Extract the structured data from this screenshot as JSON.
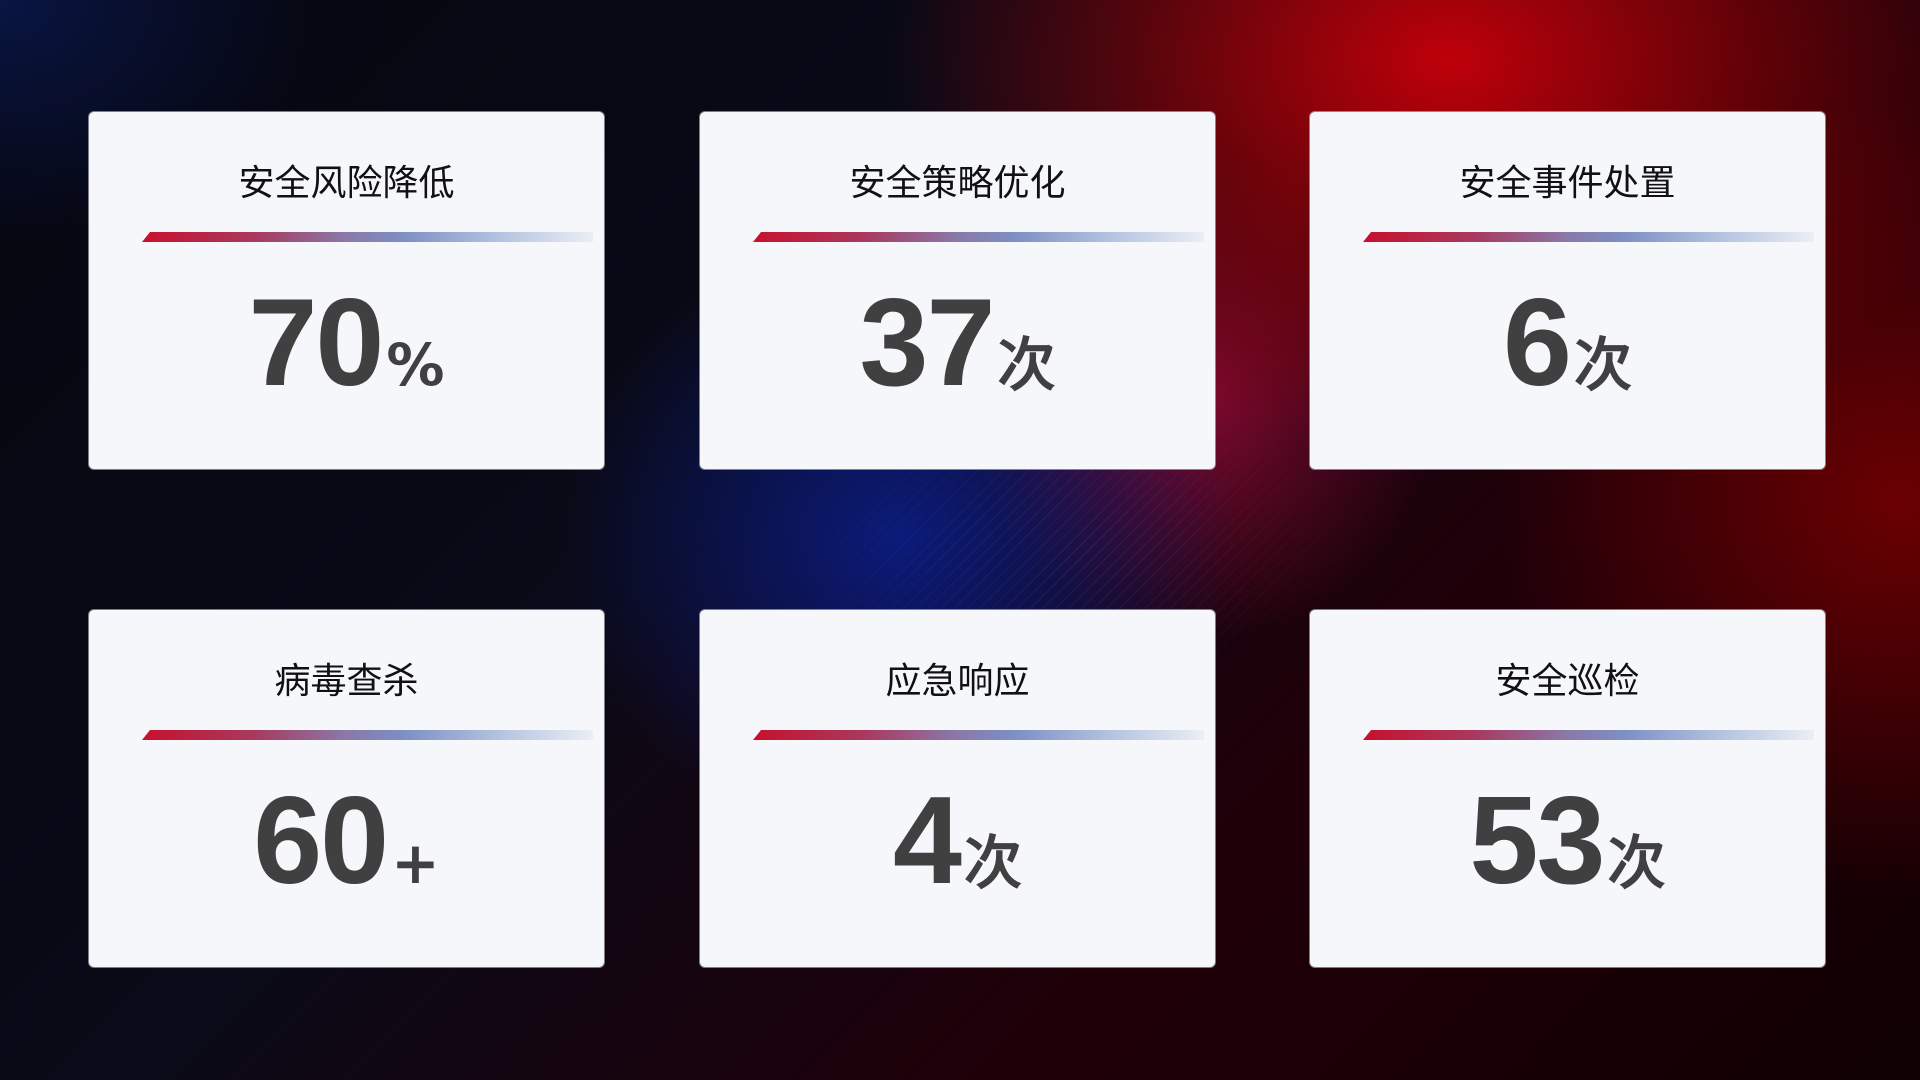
{
  "cards": [
    {
      "title": "安全风险降低",
      "value": "70",
      "unit": "%"
    },
    {
      "title": "安全策略优化",
      "value": "37",
      "unit": "次"
    },
    {
      "title": "安全事件处置",
      "value": "6",
      "unit": "次"
    },
    {
      "title": "病毒查杀",
      "value": "60",
      "unit": "+"
    },
    {
      "title": "应急响应",
      "value": "4",
      "unit": "次"
    },
    {
      "title": "安全巡检",
      "value": "53",
      "unit": "次"
    }
  ],
  "colors": {
    "accent_red": "#c8102e",
    "accent_blue": "#7d8fc4",
    "card_bg": "#f5f7fb",
    "value_text": "#404040"
  }
}
